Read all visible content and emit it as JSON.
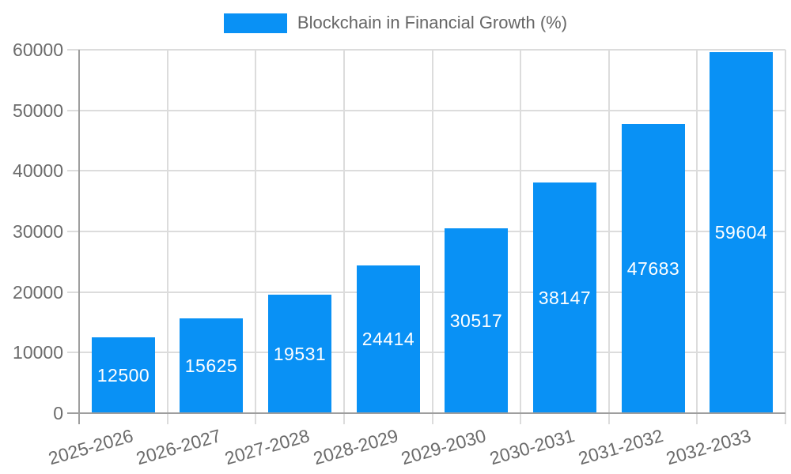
{
  "legend": {
    "label": "Blockchain in Financial Growth (%)"
  },
  "chart_data": {
    "type": "bar",
    "title": "Blockchain in Financial Growth (%)",
    "categories": [
      "2025-2026",
      "2026-2027",
      "2027-2028",
      "2028-2029",
      "2029-2030",
      "2030-2031",
      "2031-2032",
      "2032-2033"
    ],
    "values": [
      12500,
      15625,
      19531,
      24414,
      30517,
      38147,
      47683,
      59604
    ],
    "xlabel": "",
    "ylabel": "",
    "ylim": [
      0,
      60000
    ],
    "yticks": [
      0,
      10000,
      20000,
      30000,
      40000,
      50000,
      60000
    ],
    "grid": true,
    "legend_position": "top-center",
    "value_labels_shown": true
  },
  "colors": {
    "bar": "#0991f5",
    "axis_line": "#9e9e9e",
    "gridline": "#dcdcdc",
    "tick_label": "#6b6b6b",
    "legend_text": "#666666",
    "value_label": "#ffffff",
    "background": "#ffffff"
  }
}
